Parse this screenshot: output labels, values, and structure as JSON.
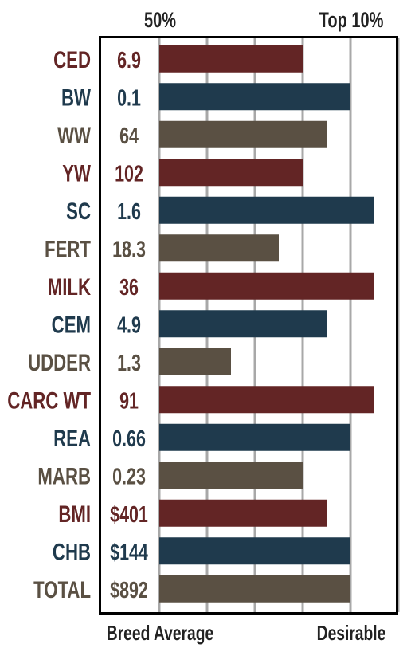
{
  "chart_data": {
    "type": "bar",
    "orientation": "horizontal",
    "scale_labels": {
      "top_left": "50%",
      "top_right": "Top 10%",
      "bottom_left": "Breed Average",
      "bottom_right": "Desirable"
    },
    "grid": true,
    "xlim": [
      0,
      5
    ],
    "colors": {
      "red": "#632525",
      "blue": "#1f3a4d",
      "brown": "#5a5043",
      "grid": "#a8a8a8",
      "frame": "#000000"
    },
    "categories": [
      "CED",
      "BW",
      "WW",
      "YW",
      "SC",
      "FERT",
      "MILK",
      "CEM",
      "UDDER",
      "CARC WT",
      "REA",
      "MARB",
      "BMI",
      "CHB",
      "TOTAL"
    ],
    "value_labels": [
      "6.9",
      "0.1",
      "64",
      "102",
      "1.6",
      "18.3",
      "36",
      "4.9",
      "1.3",
      "91",
      "0.66",
      "0.23",
      "$401",
      "$144",
      "$892"
    ],
    "values": [
      3.0,
      4.0,
      3.5,
      3.0,
      4.5,
      2.5,
      4.5,
      3.5,
      1.5,
      4.5,
      4.0,
      3.0,
      3.5,
      4.0,
      4.0
    ],
    "bar_colors": [
      "red",
      "blue",
      "brown",
      "red",
      "blue",
      "brown",
      "red",
      "blue",
      "brown",
      "red",
      "blue",
      "brown",
      "red",
      "blue",
      "brown"
    ]
  }
}
